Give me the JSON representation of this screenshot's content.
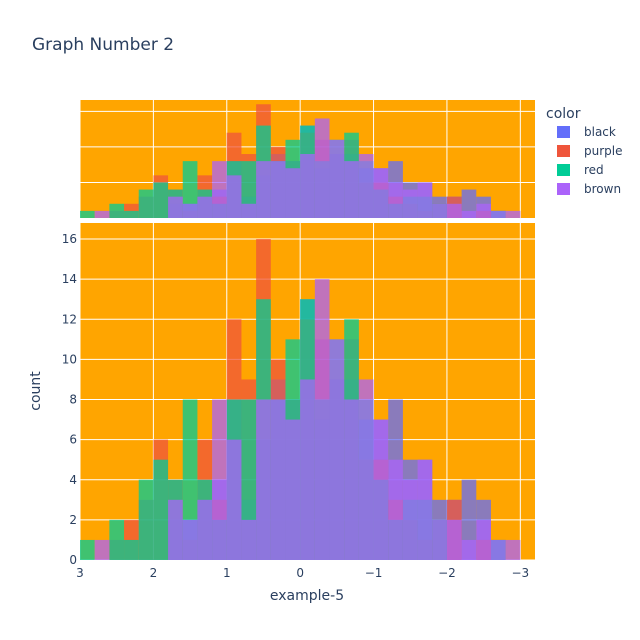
{
  "chart_data": {
    "type": "histogram",
    "title": "Graph Number 2",
    "xlabel": "example-5",
    "ylabel": "count",
    "x_reversed": true,
    "xlim": [
      3,
      -3.2
    ],
    "ylim": [
      0,
      16.8
    ],
    "bin_width": 0.2,
    "first_bin_left_edge": 3.0,
    "x_ticks": [
      {
        "value": 3,
        "label": "3"
      },
      {
        "value": 2,
        "label": "2"
      },
      {
        "value": 1,
        "label": "1"
      },
      {
        "value": 0,
        "label": "0"
      },
      {
        "value": -1,
        "label": "−1"
      },
      {
        "value": -2,
        "label": "−2"
      },
      {
        "value": -3,
        "label": "−3"
      }
    ],
    "y_ticks": [
      0,
      2,
      4,
      6,
      8,
      10,
      12,
      14,
      16
    ],
    "plot_background": "#ffa500",
    "grid": true,
    "barmode": "overlay",
    "marginal": "histogram",
    "legend": {
      "title": "color",
      "placement": "right"
    },
    "series": [
      {
        "name": "black",
        "color": "#636efa",
        "counts": [
          0,
          0,
          0,
          0,
          0,
          0,
          2,
          2,
          3,
          4,
          8,
          3,
          6,
          9,
          8,
          13,
          7,
          9,
          9,
          7,
          7,
          8,
          5,
          5,
          3,
          3,
          4,
          3,
          1,
          0,
          0
        ]
      },
      {
        "name": "purple",
        "color": "#ef553b",
        "counts": [
          0,
          0,
          1,
          2,
          3,
          6,
          4,
          1,
          6,
          3,
          12,
          9,
          16,
          10,
          8,
          12,
          11,
          9,
          11,
          5,
          5,
          3,
          2,
          1,
          2,
          3,
          0,
          1,
          0,
          0,
          0
        ]
      },
      {
        "name": "red",
        "color": "#00cc96",
        "counts": [
          1,
          0,
          2,
          1,
          4,
          5,
          4,
          8,
          4,
          2,
          8,
          8,
          13,
          8,
          11,
          13,
          8,
          11,
          12,
          8,
          4,
          2,
          3,
          3,
          2,
          0,
          0,
          0,
          1,
          0,
          0
        ]
      },
      {
        "name": "brown",
        "color": "#ab63fa",
        "counts": [
          0,
          1,
          0,
          0,
          0,
          0,
          3,
          2,
          3,
          8,
          6,
          2,
          8,
          8,
          7,
          9,
          14,
          11,
          8,
          9,
          7,
          5,
          4,
          5,
          2,
          2,
          1,
          2,
          1,
          1,
          0
        ]
      }
    ]
  }
}
